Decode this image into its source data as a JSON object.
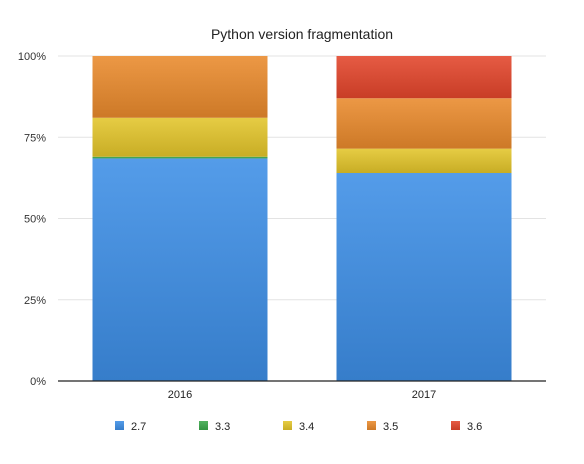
{
  "chart_data": {
    "type": "bar",
    "stacked": true,
    "title": "Python version fragmentation",
    "xlabel": "",
    "ylabel": "",
    "ylim": [
      0,
      100
    ],
    "y_tick_labels": [
      "0%",
      "25%",
      "50%",
      "75%",
      "100%"
    ],
    "y_ticks": [
      0,
      25,
      50,
      75,
      100
    ],
    "grid": true,
    "legend_position": "bottom",
    "categories": [
      "2016",
      "2017"
    ],
    "series": [
      {
        "name": "2.7",
        "values": [
          68.5,
          64
        ],
        "color": "#3d8ee6"
      },
      {
        "name": "3.3",
        "values": [
          0.5,
          0
        ],
        "color": "#3aa84a"
      },
      {
        "name": "3.4",
        "values": [
          12,
          7.5
        ],
        "color": "#e3c52a"
      },
      {
        "name": "3.5",
        "values": [
          19,
          15.5
        ],
        "color": "#e98a2c"
      },
      {
        "name": "3.6",
        "values": [
          0,
          13
        ],
        "color": "#e3452b"
      }
    ]
  }
}
